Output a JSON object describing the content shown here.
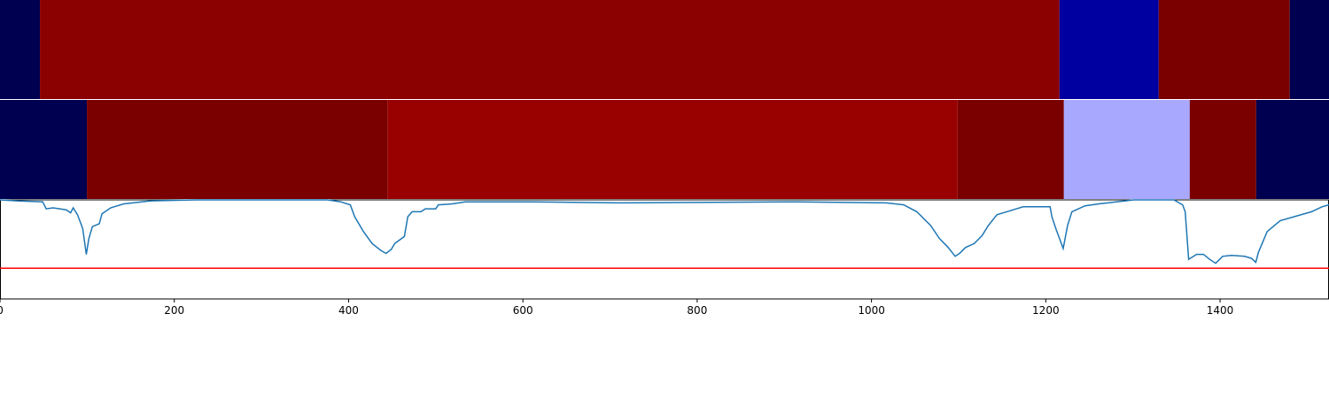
{
  "chart_data": {
    "type": "line",
    "tracks": [
      {
        "segments": [
          {
            "start": 0,
            "end": 45.8,
            "color": "#000050"
          },
          {
            "start": 45.8,
            "end": 1215.7,
            "color": "#8b0000"
          },
          {
            "start": 1215.7,
            "end": 1329.6,
            "color": "#0000a0"
          },
          {
            "start": 1329.6,
            "end": 1480,
            "color": "#7a0000"
          },
          {
            "start": 1480,
            "end": 1525,
            "color": "#000050"
          }
        ]
      },
      {
        "segments": [
          {
            "start": 0,
            "end": 99.7,
            "color": "#000050"
          },
          {
            "start": 99.7,
            "end": 444.6,
            "color": "#7a0000"
          },
          {
            "start": 444.6,
            "end": 1098.7,
            "color": "#990000"
          },
          {
            "start": 1098.7,
            "end": 1220.8,
            "color": "#7a0000"
          },
          {
            "start": 1220.8,
            "end": 1365.2,
            "color": "#a8a8ff"
          },
          {
            "start": 1365.2,
            "end": 1441.5,
            "color": "#7a0000"
          },
          {
            "start": 1441.5,
            "end": 1525,
            "color": "#000050"
          }
        ]
      }
    ],
    "x": [
      0,
      20,
      49,
      53,
      61,
      76,
      81,
      84,
      89,
      95,
      99,
      102,
      106,
      114,
      117,
      127,
      142,
      173,
      224,
      376,
      391,
      402,
      407,
      417,
      427,
      437,
      443,
      449,
      453,
      464,
      468,
      473,
      483,
      488,
      500,
      503,
      519,
      534,
      610,
      712,
      915,
      1017,
      1037,
      1052,
      1068,
      1078,
      1088,
      1096,
      1101,
      1108,
      1118,
      1127,
      1134,
      1144,
      1159,
      1174,
      1205,
      1207,
      1212,
      1220,
      1225,
      1230,
      1235,
      1245,
      1261,
      1281,
      1301,
      1347,
      1357,
      1360,
      1364,
      1373,
      1381,
      1388,
      1395,
      1403,
      1413,
      1428,
      1436,
      1441,
      1444,
      1454,
      1469,
      1489,
      1505,
      1517,
      1525
    ],
    "values": [
      1.0,
      0.99,
      0.98,
      0.91,
      0.92,
      0.9,
      0.87,
      0.92,
      0.85,
      0.71,
      0.45,
      0.61,
      0.73,
      0.76,
      0.86,
      0.92,
      0.96,
      0.99,
      1.0,
      1.0,
      0.98,
      0.95,
      0.83,
      0.68,
      0.56,
      0.49,
      0.46,
      0.5,
      0.56,
      0.63,
      0.83,
      0.88,
      0.88,
      0.91,
      0.91,
      0.95,
      0.96,
      0.98,
      0.98,
      0.97,
      0.98,
      0.97,
      0.95,
      0.88,
      0.74,
      0.61,
      0.52,
      0.43,
      0.46,
      0.52,
      0.56,
      0.64,
      0.74,
      0.85,
      0.89,
      0.93,
      0.93,
      0.83,
      0.7,
      0.51,
      0.74,
      0.88,
      0.9,
      0.94,
      0.96,
      0.98,
      1.0,
      1.0,
      0.95,
      0.88,
      0.4,
      0.45,
      0.45,
      0.4,
      0.36,
      0.43,
      0.44,
      0.43,
      0.41,
      0.37,
      0.47,
      0.68,
      0.79,
      0.84,
      0.88,
      0.93,
      0.95
    ],
    "color": "#1f77b4",
    "threshold": 0.31,
    "threshold_color": "#ff0000",
    "xlim": [
      0,
      1525
    ],
    "ylim": [
      0,
      1
    ],
    "xticks": [
      0,
      200,
      400,
      600,
      800,
      1000,
      1200,
      1400
    ]
  }
}
